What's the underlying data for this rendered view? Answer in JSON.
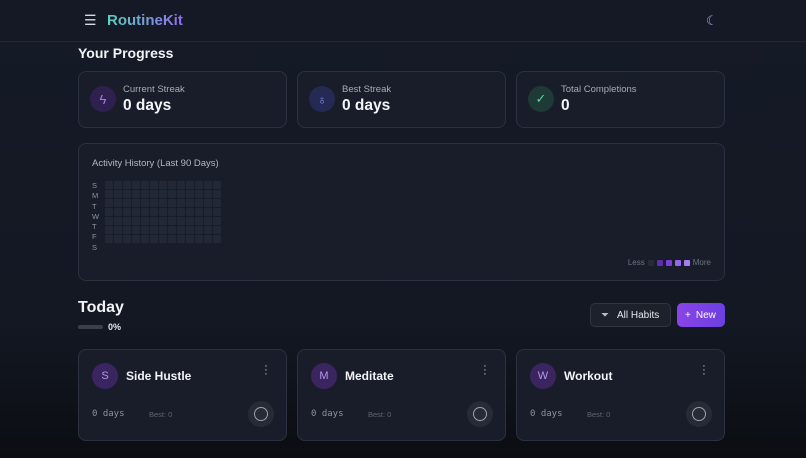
{
  "header": {
    "brand": "RoutineKit",
    "menu_icon": "menu-icon",
    "theme_icon": "moon-icon"
  },
  "progress": {
    "title": "Your Progress",
    "stats": [
      {
        "label": "Current Streak",
        "value": "0 days",
        "icon": "lightning-icon",
        "color": "#a87cf0"
      },
      {
        "label": "Best Streak",
        "value": "0 days",
        "icon": "award-icon",
        "color": "#7f8cf0"
      },
      {
        "label": "Total Completions",
        "value": "0",
        "icon": "check-circle-icon",
        "color": "#5fd0a0"
      }
    ]
  },
  "activity": {
    "title": "Activity History (Last 90 Days)",
    "days": [
      "S",
      "M",
      "T",
      "W",
      "T",
      "F",
      "S"
    ],
    "legend_less": "Less",
    "legend_more": "More",
    "legend_colors": [
      "#262b38",
      "#5a2fa8",
      "#7a3fd6",
      "#9366ea",
      "#a67cf3"
    ]
  },
  "today": {
    "title": "Today",
    "progress_percent": 0,
    "progress_label": "0%",
    "filter_label": "All Habits",
    "new_label": "New",
    "habits": [
      {
        "initial": "S",
        "name": "Side Hustle",
        "streak": "0 days",
        "best": "Best: 0"
      },
      {
        "initial": "M",
        "name": "Meditate",
        "streak": "0 days",
        "best": "Best: 0"
      },
      {
        "initial": "W",
        "name": "Workout",
        "streak": "0 days",
        "best": "Best: 0"
      }
    ]
  }
}
